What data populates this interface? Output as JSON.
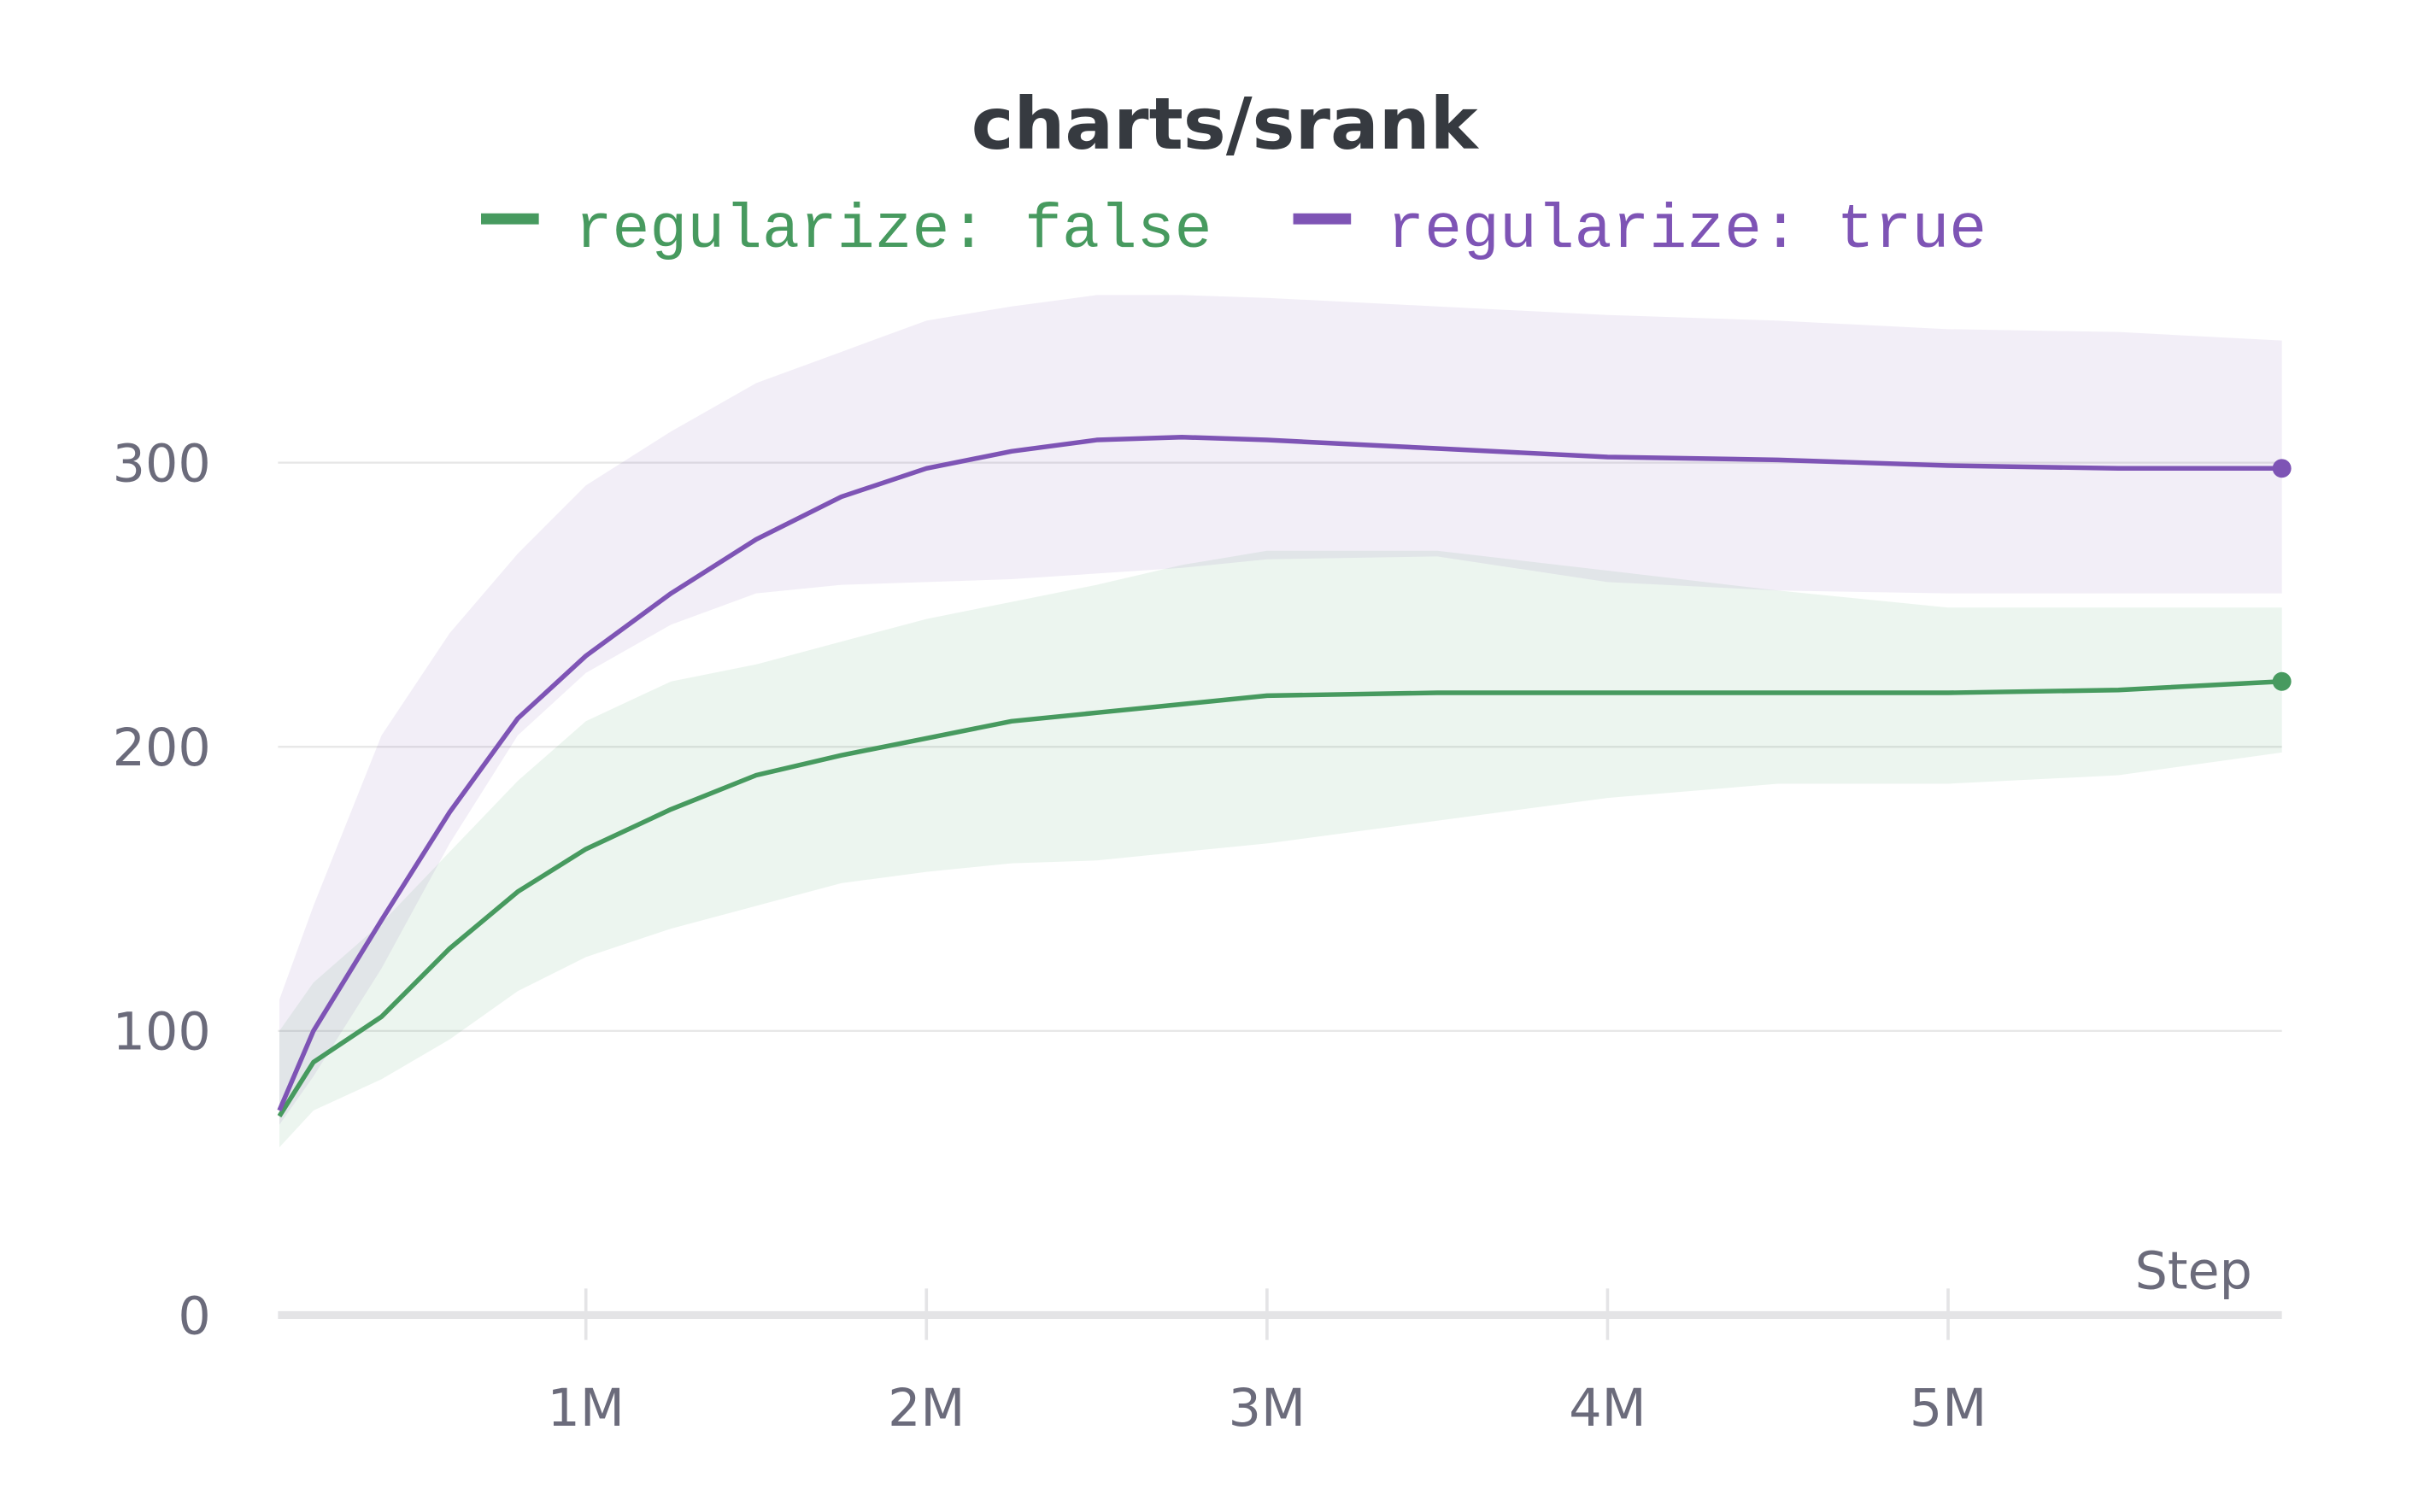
{
  "chart_data": {
    "type": "line",
    "title": "charts/srank",
    "x_label": "Step",
    "x": [
      100000,
      200000,
      400000,
      600000,
      800000,
      1000000,
      1250000,
      1500000,
      1750000,
      2000000,
      2250000,
      2500000,
      2750000,
      3000000,
      3500000,
      4000000,
      4500000,
      5000000,
      5500000,
      5980000
    ],
    "series": [
      {
        "name": "regularize: false",
        "color": "#479a5f",
        "values": [
          70,
          89,
          105,
          129,
          149,
          164,
          178,
          190,
          197,
          203,
          209,
          212,
          215,
          218,
          219,
          219,
          219,
          219,
          220,
          223
        ],
        "upper": [
          100,
          117,
          138,
          163,
          188,
          209,
          223,
          229,
          237,
          245,
          251,
          257,
          264,
          269,
          269,
          262,
          255,
          249,
          249,
          249
        ],
        "lower": [
          59,
          72,
          83,
          97,
          114,
          126,
          136,
          144,
          152,
          156,
          159,
          160,
          163,
          166,
          174,
          182,
          187,
          187,
          190,
          198
        ]
      },
      {
        "name": "regularize: true",
        "color": "#7e54b5",
        "values": [
          72,
          100,
          139,
          177,
          210,
          232,
          254,
          273,
          288,
          298,
          304,
          308,
          309,
          308,
          305,
          302,
          301,
          299,
          298,
          298
        ],
        "upper": [
          111,
          144,
          204,
          240,
          268,
          292,
          311,
          328,
          339,
          350,
          355,
          359,
          359,
          358,
          355,
          352,
          350,
          347,
          346,
          343
        ],
        "lower": [
          67,
          84,
          122,
          166,
          204,
          226,
          243,
          254,
          257,
          258,
          259,
          261,
          263,
          266,
          267,
          258,
          255,
          254,
          254,
          254
        ]
      }
    ],
    "xlim": [
      96000,
      5980000
    ],
    "xticks": [
      {
        "value": 1000000,
        "label": "1M"
      },
      {
        "value": 2000000,
        "label": "2M"
      },
      {
        "value": 3000000,
        "label": "3M"
      },
      {
        "value": 4000000,
        "label": "4M"
      },
      {
        "value": 5000000,
        "label": "5M"
      }
    ],
    "ylim": [
      0,
      360
    ],
    "yticks": [
      0,
      100,
      200,
      300
    ],
    "grid": true
  }
}
